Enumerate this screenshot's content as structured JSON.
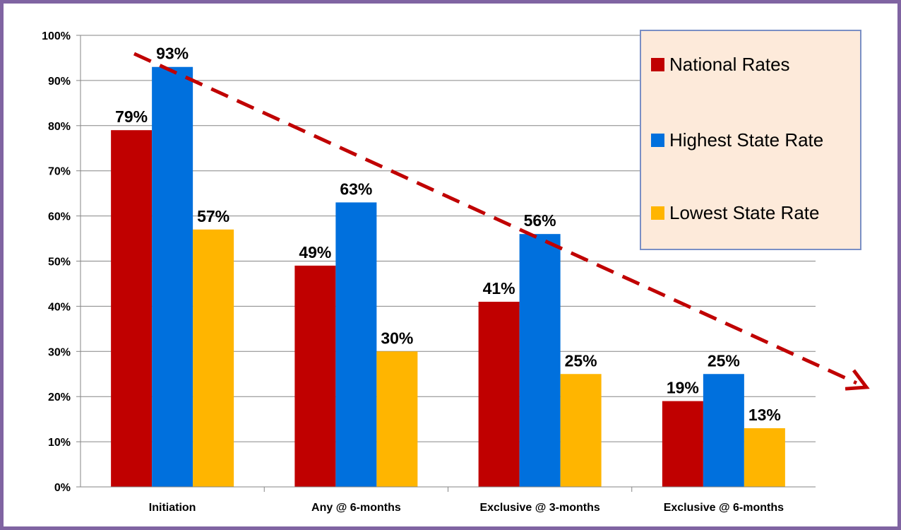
{
  "colors": {
    "frame": "#8064a2",
    "grid": "#868686",
    "arrow": "#c00000",
    "legend_bg": "#fdeada",
    "legend_border": "#7a8fc5"
  },
  "chart_data": {
    "type": "bar",
    "title": "",
    "xlabel": "",
    "ylabel": "",
    "ylim": [
      0,
      100
    ],
    "ytick_step": 10,
    "ytick_suffix": "%",
    "grid": true,
    "legend_position": "top-right",
    "categories": [
      "Initiation",
      "Any @ 6-months",
      "Exclusive @ 3-months",
      "Exclusive @ 6-months"
    ],
    "series": [
      {
        "name": "National Rates",
        "color": "#c00000",
        "values": [
          79,
          49,
          41,
          19
        ],
        "labels": [
          "79%",
          "49%",
          "41%",
          "19%"
        ]
      },
      {
        "name": "Highest State Rate",
        "color": "#0070dd",
        "values": [
          93,
          63,
          56,
          25
        ],
        "labels": [
          "93%",
          "63%",
          "56%",
          "25%"
        ]
      },
      {
        "name": "Lowest State Rate",
        "color": "#ffb500",
        "values": [
          57,
          30,
          25,
          13
        ],
        "labels": [
          "57%",
          "30%",
          "25%",
          "13%"
        ]
      }
    ],
    "annotations": [
      {
        "type": "dashed-arrow",
        "color": "#c00000",
        "description": "downward trend"
      }
    ]
  }
}
